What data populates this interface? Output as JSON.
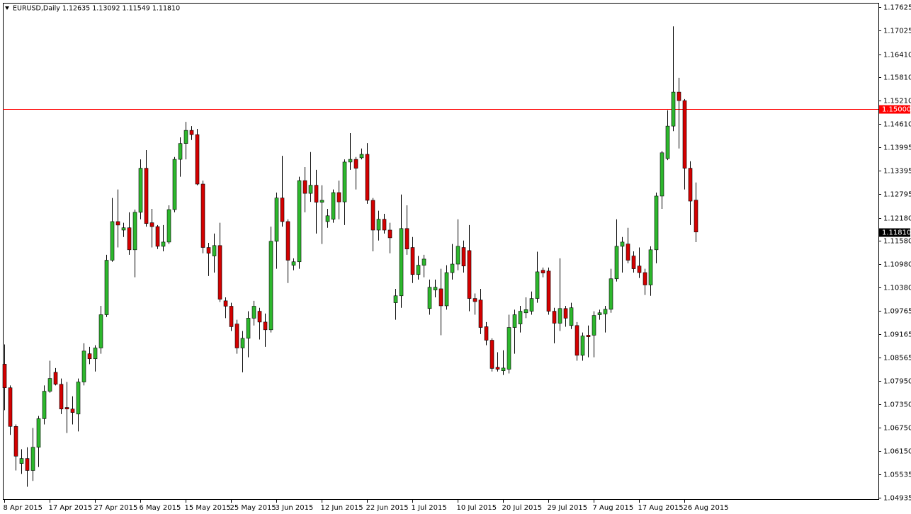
{
  "chart_data": {
    "type": "candlestick",
    "title": "EURUSD,Daily  1.12635 1.13092 1.11549 1.11810",
    "categories": [
      "8 Apr 2015",
      null,
      null,
      null,
      null,
      null,
      null,
      null,
      "17 Apr 2015",
      null,
      null,
      null,
      null,
      null,
      null,
      null,
      "27 Apr 2015",
      null,
      null,
      null,
      null,
      null,
      null,
      null,
      "6 May 2015",
      null,
      null,
      null,
      null,
      null,
      null,
      null,
      "15 May 2015",
      null,
      null,
      null,
      null,
      null,
      null,
      null,
      "25 May 2015",
      null,
      null,
      null,
      null,
      null,
      null,
      null,
      "3 Jun 2015",
      null,
      null,
      null,
      null,
      null,
      null,
      null,
      "12 Jun 2015",
      null,
      null,
      null,
      null,
      null,
      null,
      null,
      "22 Jun 2015",
      null,
      null,
      null,
      null,
      null,
      null,
      null,
      "1 Jul 2015",
      null,
      null,
      null,
      null,
      null,
      null,
      null,
      "10 Jul 2015",
      null,
      null,
      null,
      null,
      null,
      null,
      null,
      "20 Jul 2015",
      null,
      null,
      null,
      null,
      null,
      null,
      null,
      "29 Jul 2015",
      null,
      null,
      null,
      null,
      null,
      null,
      null,
      "7 Aug 2015",
      null,
      null,
      null,
      null,
      null,
      null,
      null,
      "17 Aug 2015",
      null,
      null,
      null,
      null,
      null,
      null,
      null,
      "26 Aug 2015",
      null,
      null
    ],
    "open": [
      1.0839,
      1.0778,
      1.0678,
      1.0582,
      1.0595,
      1.0564,
      1.0624,
      1.0698,
      1.0769,
      1.0818,
      1.0787,
      1.0727,
      1.0723,
      1.071,
      1.0793,
      1.0866,
      1.0853,
      1.0881,
      1.0967,
      1.1108,
      1.1208,
      1.1186,
      1.1192,
      1.1135,
      1.1232,
      1.1346,
      1.1205,
      1.1195,
      1.1144,
      1.1155,
      1.1239,
      1.1369,
      1.141,
      1.1444,
      1.1433,
      1.1305,
      1.1141,
      1.1119,
      1.1146,
      1.1003,
      1.0989,
      1.0943,
      1.0881,
      1.0906,
      1.0958,
      1.0976,
      1.0948,
      1.0928,
      1.1157,
      1.1269,
      1.1208,
      1.1095,
      1.1104,
      1.1314,
      1.1281,
      1.1302,
      1.1258,
      1.1208,
      1.1214,
      1.1283,
      1.1259,
      1.1362,
      1.1369,
      1.1373,
      1.1382,
      1.1263,
      1.1186,
      1.1214,
      1.1186,
      1.0998,
      1.1016,
      1.119,
      1.1141,
      1.1071,
      1.1095,
      1.0983,
      1.1031,
      1.1034,
      1.099,
      1.1076,
      1.1098,
      1.1141,
      1.1133,
      1.1009,
      1.1005,
      1.0936,
      1.0901,
      1.0831,
      1.0822,
      1.0826,
      1.0934,
      1.0943,
      1.0972,
      1.0976,
      1.1009,
      1.1082,
      1.108,
      1.0976,
      1.0945,
      1.0983,
      1.0939,
      1.0939,
      1.0862,
      1.0914,
      1.0914,
      1.0967,
      1.0969,
      1.0981,
      1.106,
      1.1144,
      1.115,
      1.1119,
      1.1093,
      1.1076,
      1.1044,
      1.1135,
      1.1274,
      1.1371,
      1.1455,
      1.1543,
      1.1521,
      1.1346,
      1.12635
    ],
    "high": [
      1.089,
      1.0784,
      1.0683,
      1.0619,
      1.0624,
      1.0674,
      1.0705,
      1.0784,
      1.0848,
      1.0829,
      1.0802,
      1.0793,
      1.0756,
      1.0802,
      1.0893,
      1.0884,
      1.0888,
      1.099,
      1.1122,
      1.1269,
      1.1291,
      1.1205,
      1.1232,
      1.1239,
      1.1369,
      1.1393,
      1.1241,
      1.1199,
      1.1199,
      1.125,
      1.1375,
      1.1426,
      1.1466,
      1.1455,
      1.1448,
      1.1314,
      1.1153,
      1.1177,
      1.1205,
      1.1012,
      1.0998,
      1.0954,
      1.0925,
      1.0976,
      1.1003,
      1.0985,
      1.097,
      1.1195,
      1.1283,
      1.1378,
      1.1214,
      1.1113,
      1.1324,
      1.1349,
      1.1388,
      1.1342,
      1.1302,
      1.1241,
      1.1291,
      1.1314,
      1.1369,
      1.1437,
      1.1375,
      1.1397,
      1.1411,
      1.1269,
      1.1236,
      1.1228,
      1.1205,
      1.1034,
      1.1278,
      1.125,
      1.1168,
      1.1119,
      1.1122,
      1.1058,
      1.1058,
      1.1086,
      1.1095,
      1.115,
      1.1214,
      1.1159,
      1.1199,
      1.1022,
      1.1034,
      1.0948,
      1.0906,
      1.087,
      1.0875,
      1.0967,
      1.098,
      1.099,
      1.1012,
      1.1027,
      1.113,
      1.1089,
      1.1089,
      1.0985,
      1.1113,
      1.099,
      1.0998,
      1.0948,
      1.0921,
      1.0939,
      1.0976,
      1.098,
      1.099,
      1.1086,
      1.1214,
      1.1168,
      1.1192,
      1.1131,
      1.1141,
      1.1086,
      1.1144,
      1.1283,
      1.1391,
      1.1496,
      1.1713,
      1.158,
      1.1525,
      1.1364,
      1.13092
    ],
    "low": [
      1.072,
      1.0656,
      1.0564,
      1.0555,
      1.0522,
      1.0537,
      1.0573,
      1.0683,
      1.0765,
      1.0784,
      1.071,
      1.0661,
      1.0683,
      1.0665,
      1.0784,
      1.0839,
      1.082,
      1.0866,
      1.0961,
      1.1104,
      1.1141,
      1.1168,
      1.1122,
      1.1064,
      1.1214,
      1.1195,
      1.1141,
      1.1137,
      1.1131,
      1.115,
      1.1232,
      1.1324,
      1.1369,
      1.1419,
      1.1302,
      1.1126,
      1.1067,
      1.1076,
      1.1,
      1.0958,
      1.0925,
      1.0866,
      1.0818,
      1.0857,
      1.0939,
      1.0903,
      1.0884,
      1.0921,
      1.1086,
      1.1195,
      1.1049,
      1.1082,
      1.1086,
      1.1232,
      1.1259,
      1.1177,
      1.115,
      1.1192,
      1.1205,
      1.1214,
      1.1199,
      1.1342,
      1.1291,
      1.1369,
      1.1254,
      1.1131,
      1.1159,
      1.1177,
      1.1126,
      1.0954,
      1.0985,
      1.1122,
      1.1049,
      1.1058,
      1.1064,
      1.0967,
      1.1012,
      1.0914,
      1.098,
      1.1058,
      1.1082,
      1.1076,
      1.0976,
      1.0967,
      1.0917,
      1.0888,
      1.082,
      1.082,
      1.0811,
      1.0815,
      1.0866,
      1.0921,
      1.0958,
      1.0967,
      1.0998,
      1.1064,
      1.0967,
      1.0893,
      1.0925,
      1.0936,
      1.093,
      1.0848,
      1.0848,
      1.0857,
      1.0857,
      1.0954,
      1.0921,
      1.0972,
      1.1053,
      1.1076,
      1.11,
      1.1076,
      1.1062,
      1.1018,
      1.1016,
      1.11,
      1.1241,
      1.1367,
      1.1442,
      1.1397,
      1.1291,
      1.1199,
      1.11549
    ],
    "close": [
      1.0778,
      1.0678,
      1.0601,
      1.0595,
      1.0564,
      1.0624,
      1.0698,
      1.0769,
      1.0802,
      1.0787,
      1.0723,
      1.0723,
      1.0714,
      1.0793,
      1.0873,
      1.0853,
      1.0881,
      1.0967,
      1.1108,
      1.1208,
      1.1199,
      1.1192,
      1.1135,
      1.1232,
      1.1346,
      1.1203,
      1.1195,
      1.1144,
      1.1155,
      1.1239,
      1.1369,
      1.141,
      1.1444,
      1.1433,
      1.1305,
      1.1141,
      1.1126,
      1.1146,
      1.1007,
      1.0989,
      1.0936,
      1.0881,
      1.0906,
      1.0958,
      1.0989,
      1.0948,
      1.0928,
      1.1157,
      1.1269,
      1.1208,
      1.1108,
      1.1104,
      1.1314,
      1.1281,
      1.1302,
      1.1258,
      1.1263,
      1.1223,
      1.1283,
      1.1259,
      1.1362,
      1.1369,
      1.1346,
      1.1382,
      1.1263,
      1.1186,
      1.1214,
      1.1186,
      1.1166,
      1.1016,
      1.119,
      1.1137,
      1.1071,
      1.1095,
      1.1111,
      1.1038,
      1.1038,
      1.099,
      1.1076,
      1.1098,
      1.1144,
      1.1093,
      1.1009,
      1.1001,
      1.0934,
      1.0901,
      1.0828,
      1.0826,
      1.0829,
      1.0934,
      1.0967,
      1.0976,
      1.098,
      1.1009,
      1.1078,
      1.1075,
      1.0976,
      1.0945,
      1.0983,
      1.0958,
      1.0985,
      1.0862,
      1.0912,
      1.091,
      1.0965,
      1.0972,
      1.0981,
      1.106,
      1.1144,
      1.1155,
      1.1108,
      1.1086,
      1.1076,
      1.1044,
      1.1135,
      1.1274,
      1.1386,
      1.1455,
      1.1543,
      1.1521,
      1.1346,
      1.1261,
      1.1181
    ],
    "up_color": "#2db82d",
    "down_color": "#d40000",
    "ylim": [
      1.0488,
      1.1774
    ],
    "yticks": [
      1.17625,
      1.17025,
      {
        "value": 1.1641,
        "label": "1.16410"
      },
      {
        "value": 1.1581,
        "label": "1.15810"
      },
      {
        "value": 1.1521,
        "label": "1.15210"
      },
      {
        "value": 1.1461,
        "label": "1.14610"
      },
      1.13995,
      1.13395,
      1.12795,
      {
        "value": 1.1218,
        "label": "1.12180"
      },
      {
        "value": 1.1158,
        "label": "1.11580"
      },
      {
        "value": 1.1098,
        "label": "1.10980"
      },
      {
        "value": 1.1038,
        "label": "1.10380"
      },
      1.09765,
      1.09165,
      1.08565,
      {
        "value": 1.0795,
        "label": "1.07950"
      },
      {
        "value": 1.0735,
        "label": "1.07350"
      },
      {
        "value": 1.0675,
        "label": "1.06750"
      },
      {
        "value": 1.0615,
        "label": "1.06150"
      },
      1.05535,
      1.04935
    ],
    "hline": {
      "value": 1.15,
      "label": "1.15000",
      "color": "#ff0000"
    },
    "last_price": {
      "value": 1.1181,
      "label": "1.11810"
    }
  }
}
